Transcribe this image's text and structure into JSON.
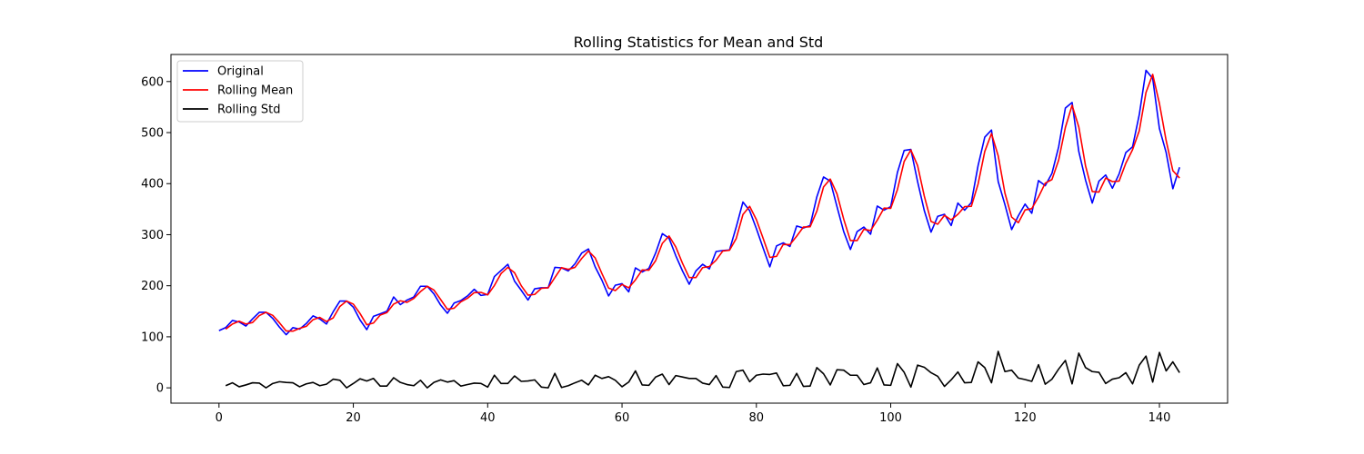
{
  "chart_data": {
    "type": "line",
    "title": "Rolling Statistics for Mean and Std",
    "xlabel": "",
    "ylabel": "",
    "xlim": [
      -7.15,
      150.15
    ],
    "ylim": [
      -30,
      653
    ],
    "xticks": [
      0,
      20,
      40,
      60,
      80,
      100,
      120,
      140
    ],
    "yticks": [
      0,
      100,
      200,
      300,
      400,
      500,
      600
    ],
    "grid": false,
    "legend_position": "top-left",
    "series": [
      {
        "name": "Original",
        "color": "#0000ff",
        "x_start": 0,
        "values": [
          112,
          118,
          132,
          129,
          121,
          135,
          148,
          148,
          136,
          119,
          104,
          118,
          115,
          126,
          141,
          135,
          125,
          149,
          170,
          170,
          158,
          133,
          114,
          140,
          145,
          150,
          178,
          163,
          172,
          178,
          199,
          199,
          184,
          162,
          146,
          166,
          171,
          180,
          193,
          181,
          183,
          218,
          230,
          242,
          209,
          191,
          172,
          194,
          196,
          196,
          236,
          235,
          229,
          243,
          264,
          272,
          237,
          211,
          180,
          201,
          204,
          188,
          235,
          227,
          234,
          264,
          302,
          293,
          259,
          229,
          203,
          229,
          242,
          233,
          267,
          269,
          270,
          315,
          364,
          347,
          312,
          274,
          237,
          278,
          284,
          277,
          317,
          313,
          318,
          374,
          413,
          405,
          355,
          306,
          271,
          306,
          315,
          301,
          356,
          348,
          355,
          422,
          465,
          467,
          404,
          347,
          305,
          336,
          340,
          318,
          362,
          348,
          363,
          435,
          491,
          505,
          404,
          359,
          310,
          337,
          360,
          342,
          406,
          396,
          420,
          472,
          548,
          559,
          463,
          407,
          362,
          405,
          417,
          391,
          419,
          461,
          472,
          535,
          622,
          606,
          508,
          461,
          390,
          432
        ]
      },
      {
        "name": "Rolling Mean",
        "color": "#ff0000",
        "x_start": 1,
        "values": [
          115,
          125,
          130.5,
          125,
          128,
          141.5,
          148,
          142,
          127.5,
          111.5,
          111,
          116.5,
          120.5,
          133.5,
          138,
          130,
          137,
          159.5,
          170,
          164,
          145.5,
          123.5,
          127,
          142.5,
          147.5,
          164,
          170.5,
          167.5,
          175,
          188.5,
          199,
          191.5,
          173,
          154,
          156,
          168.5,
          175.5,
          186.5,
          187,
          182,
          200.5,
          224,
          236,
          225.5,
          200,
          181.5,
          183,
          195,
          196,
          216,
          235.5,
          232,
          236,
          253.5,
          268,
          254.5,
          224,
          195.5,
          190.5,
          202.5,
          196,
          211.5,
          231,
          230.5,
          249,
          283,
          297.5,
          276,
          244,
          216,
          216,
          235.5,
          237.5,
          250,
          268,
          269.5,
          292.5,
          339.5,
          355.5,
          329.5,
          293,
          255.5,
          257.5,
          281,
          280.5,
          297,
          315,
          315.5,
          346,
          393.5,
          409,
          380,
          330.5,
          288.5,
          288.5,
          310.5,
          308,
          328.5,
          352,
          351.5,
          388.5,
          443.5,
          466,
          435.5,
          375.5,
          326,
          320.5,
          338,
          329,
          340,
          355,
          355.5,
          399,
          463,
          498,
          454.5,
          381.5,
          334.5,
          323.5,
          348.5,
          351,
          374,
          401,
          408,
          446,
          510,
          553.5,
          511,
          435,
          384.5,
          383.5,
          411,
          404,
          405,
          440,
          466.5,
          503.5,
          578.5,
          614,
          557,
          484.5,
          425.5,
          411
        ]
      },
      {
        "name": "Rolling Std",
        "color": "#000000",
        "x_start": 1,
        "values": [
          4.2,
          9.9,
          2.1,
          5.7,
          9.9,
          9.2,
          0,
          8.5,
          12,
          10.6,
          9.9,
          2.1,
          7.8,
          10.6,
          4.2,
          7.1,
          17,
          14.8,
          0,
          8.5,
          17.7,
          13.4,
          18.4,
          3.5,
          3.5,
          19.8,
          10.6,
          6.4,
          4.2,
          14.8,
          0,
          10.6,
          15.6,
          11.3,
          14.1,
          3.5,
          6.4,
          9.2,
          8.5,
          1.4,
          24.7,
          8.5,
          8.5,
          23.3,
          12.7,
          13.4,
          15.6,
          1.4,
          0,
          28.3,
          0.7,
          4.2,
          9.9,
          14.8,
          5.7,
          24.7,
          18.4,
          21.9,
          14.8,
          2.1,
          11.3,
          33.2,
          5.7,
          4.9,
          21.2,
          26.9,
          6.4,
          24,
          21.2,
          18.4,
          18.4,
          9.2,
          6.4,
          24,
          1.4,
          0.7,
          31.8,
          34.6,
          12,
          24.7,
          26.9,
          26.2,
          29,
          4.2,
          4.9,
          28.3,
          2.8,
          3.5,
          39.6,
          27.6,
          5.7,
          35.4,
          34.6,
          24.7,
          24.7,
          6.4,
          9.9,
          38.9,
          5.7,
          4.9,
          47.4,
          30.4,
          1.4,
          44.5,
          40.3,
          29.7,
          22.6,
          2.8,
          15.6,
          31.1,
          9.9,
          10.6,
          50.9,
          39.6,
          9.9,
          71.4,
          31.8,
          34.6,
          19.1,
          16.3,
          12.7,
          45.3,
          7.1,
          17,
          36.8,
          53.7,
          7.8,
          67.9,
          39.6,
          31.8,
          30.4,
          8.5,
          17,
          19.8,
          29.7,
          7.8,
          44.5,
          62.2,
          11.3,
          69.3,
          33.2,
          50.9,
          29.7
        ]
      }
    ]
  }
}
